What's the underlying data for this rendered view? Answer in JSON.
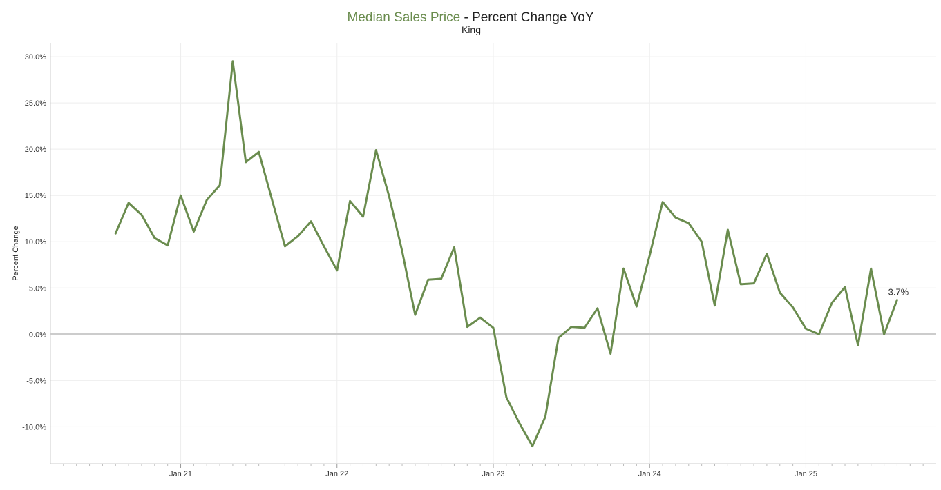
{
  "colors": {
    "series": "#6a8c4e",
    "title_dark": "#222222",
    "grid": "#eeeeee",
    "zero_line": "#cccccc",
    "axis": "#cccccc"
  },
  "chart_data": {
    "type": "line",
    "title": {
      "metric": "Median Sales Price",
      "rest": " - Percent Change YoY"
    },
    "subtitle": "King",
    "ylabel": "Percent Change",
    "xlabel": "",
    "ylim": [
      -14.0,
      31.5
    ],
    "yticks": [
      {
        "value": 30,
        "label": "30.0%"
      },
      {
        "value": 25,
        "label": "25.0%"
      },
      {
        "value": 20,
        "label": "20.0%"
      },
      {
        "value": 15,
        "label": "15.0%"
      },
      {
        "value": 10,
        "label": "10.0%"
      },
      {
        "value": 5,
        "label": "5.0%"
      },
      {
        "value": 0,
        "label": "0.0%"
      },
      {
        "value": -5,
        "label": "-5.0%"
      },
      {
        "value": -10,
        "label": "-10.0%"
      }
    ],
    "xlim": [
      "2020-03",
      "2025-11"
    ],
    "xticks": [
      {
        "value": "2021-01",
        "label": "Jan 21"
      },
      {
        "value": "2022-01",
        "label": "Jan 22"
      },
      {
        "value": "2023-01",
        "label": "Jan 23"
      },
      {
        "value": "2024-01",
        "label": "Jan 24"
      },
      {
        "value": "2025-01",
        "label": "Jan 25"
      }
    ],
    "grid": true,
    "series": [
      {
        "x": [
          "2020-08",
          "2020-09",
          "2020-10",
          "2020-11",
          "2020-12",
          "2021-01",
          "2021-02",
          "2021-03",
          "2021-04",
          "2021-05",
          "2021-06",
          "2021-07",
          "2021-08",
          "2021-09",
          "2021-10",
          "2021-11",
          "2021-12",
          "2022-01",
          "2022-02",
          "2022-03",
          "2022-04",
          "2022-05",
          "2022-06",
          "2022-07",
          "2022-08",
          "2022-09",
          "2022-10",
          "2022-11",
          "2022-12",
          "2023-01",
          "2023-02",
          "2023-03",
          "2023-04",
          "2023-05",
          "2023-06",
          "2023-07",
          "2023-08",
          "2023-09",
          "2023-10",
          "2023-11",
          "2023-12",
          "2024-01",
          "2024-02",
          "2024-03",
          "2024-04",
          "2024-05",
          "2024-06",
          "2024-07",
          "2024-08",
          "2024-09",
          "2024-10",
          "2024-11",
          "2024-12",
          "2025-01",
          "2025-02",
          "2025-03",
          "2025-04",
          "2025-05",
          "2025-06",
          "2025-07",
          "2025-08"
        ],
        "values": [
          10.9,
          14.2,
          12.9,
          10.4,
          9.6,
          15.0,
          11.1,
          14.5,
          16.1,
          29.5,
          18.6,
          19.7,
          14.6,
          9.5,
          10.6,
          12.2,
          9.5,
          6.9,
          14.4,
          12.7,
          19.9,
          14.9,
          9.0,
          2.1,
          5.9,
          6.0,
          9.4,
          0.8,
          1.8,
          0.7,
          -6.8,
          -9.6,
          -12.1,
          -8.9,
          -0.4,
          0.8,
          0.7,
          2.8,
          -2.1,
          7.1,
          3.0,
          8.5,
          14.3,
          12.6,
          12.0,
          10.0,
          3.1,
          11.3,
          5.4,
          5.5,
          8.7,
          4.5,
          2.9,
          0.6,
          0.0,
          3.4,
          5.1,
          -1.2,
          7.1,
          0.0,
          3.7
        ]
      }
    ],
    "end_label": "3.7%"
  }
}
